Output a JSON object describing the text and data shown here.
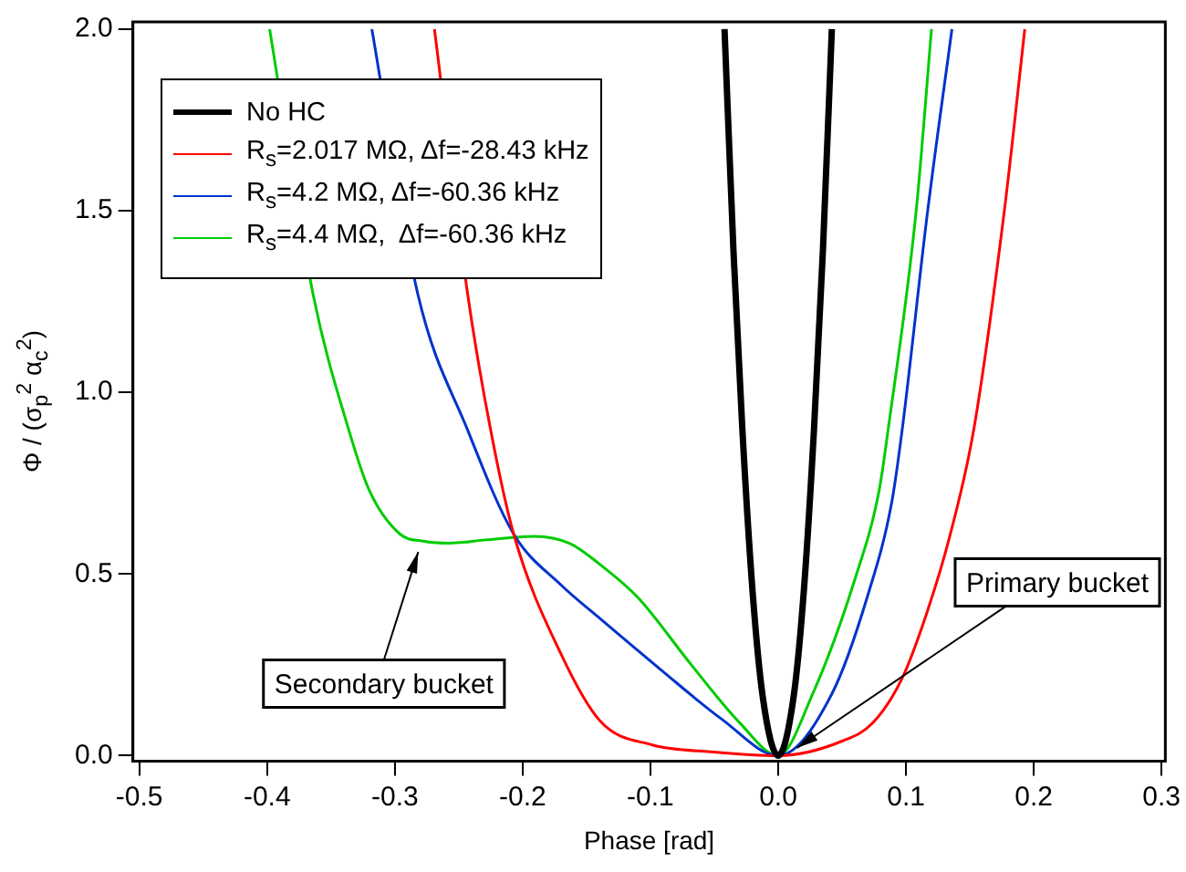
{
  "chart_data": {
    "type": "line",
    "xlabel": "Phase [rad]",
    "ylabel": "Φ / (σ$_{p}$$^{2}$ α$_{c}$$^{2}$)",
    "xlim": [
      -0.505,
      0.303
    ],
    "ylim": [
      -0.015,
      2.02
    ],
    "xticks": [
      -0.5,
      -0.4,
      -0.3,
      -0.2,
      -0.1,
      {
        "value": 0,
        "label": "0.0"
      },
      0.1,
      0.2,
      0.3
    ],
    "yticks": [
      {
        "value": 0,
        "label": "0.0"
      },
      0.5,
      {
        "value": 1,
        "label": "1.0"
      },
      1.5,
      {
        "value": 2,
        "label": "2.0"
      }
    ],
    "grid": false,
    "legend": "top left",
    "marker": "none",
    "line_style": "solid",
    "series": [
      {
        "name": "No HC",
        "color": "#000000",
        "x": [
          -0.042,
          -0.035,
          -0.028,
          -0.02,
          -0.012,
          0,
          0.012,
          0.02,
          0.028,
          0.035,
          0.042
        ],
        "values": [
          2.0,
          1.39,
          0.896,
          0.45,
          0.16,
          0,
          0.16,
          0.45,
          0.896,
          1.39,
          2.0
        ]
      },
      {
        "name": "R$_{s}$=2.017 MΩ, Δf=-28.43 kHz",
        "color": "#ff0000",
        "x": [
          -0.269,
          -0.243,
          -0.225,
          -0.207,
          -0.17,
          -0.139,
          -0.099,
          -0.05,
          0,
          0.05,
          0.074,
          0.097,
          0.117,
          0.134,
          0.153,
          0.177,
          0.193
        ],
        "values": [
          2.0,
          1.27,
          0.896,
          0.61,
          0.28,
          0.094,
          0.03,
          0.01,
          0,
          0.04,
          0.09,
          0.213,
          0.4,
          0.6,
          0.896,
          1.5,
          2.0
        ]
      },
      {
        "name": "R$_{s}$=4.2 MΩ, Δf=-60.36 kHz",
        "color": "#0033cc",
        "x": [
          -0.318,
          -0.282,
          -0.243,
          -0.207,
          -0.17,
          -0.139,
          -0.092,
          -0.044,
          0,
          0.042,
          0.07,
          0.089,
          0.097,
          0.117,
          0.136
        ],
        "values": [
          2.0,
          1.27,
          0.896,
          0.61,
          0.47,
          0.376,
          0.237,
          0.1,
          0,
          0.17,
          0.44,
          0.7,
          0.896,
          1.5,
          2.0
        ]
      },
      {
        "name": "R$_{s}$=4.4 MΩ,  Δf=-60.36 kHz",
        "color": "#00cc00",
        "x": [
          -0.398,
          -0.364,
          -0.336,
          -0.32,
          -0.296,
          -0.277,
          -0.257,
          -0.229,
          -0.191,
          -0.163,
          -0.139,
          -0.11,
          -0.068,
          -0.03,
          0,
          0.027,
          0.06,
          0.079,
          0.086,
          0.108,
          0.12
        ],
        "values": [
          2.0,
          1.27,
          0.896,
          0.73,
          0.61,
          0.59,
          0.585,
          0.594,
          0.604,
          0.584,
          0.525,
          0.436,
          0.25,
          0.09,
          0,
          0.17,
          0.485,
          0.73,
          0.896,
          1.5,
          2.0
        ]
      }
    ],
    "annotations": [
      {
        "text": "Secondary bucket",
        "x": -0.28,
        "y": 0.58
      },
      {
        "text": "Primary bucket",
        "x": 0.01,
        "y": 0.01
      }
    ]
  }
}
